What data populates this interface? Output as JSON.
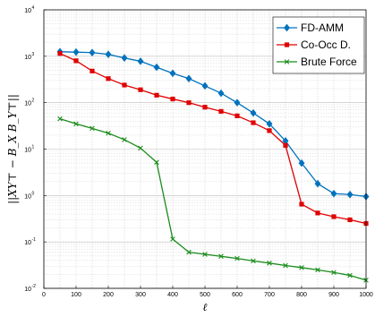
{
  "chart_data": {
    "type": "line",
    "title": "",
    "xlabel": "ℓ",
    "ylabel": "||XY⊤ − B_X B_Y⊤||",
    "x": [
      50,
      100,
      150,
      200,
      250,
      300,
      350,
      400,
      450,
      500,
      550,
      600,
      650,
      700,
      750,
      800,
      850,
      900,
      950,
      1000
    ],
    "xlim": [
      0,
      1000
    ],
    "ylim": [
      0.01,
      10000
    ],
    "yscale": "log",
    "grid": true,
    "legend_position": "top-right",
    "x_ticks": [
      "0",
      "100",
      "200",
      "300",
      "400",
      "500",
      "600",
      "700",
      "800",
      "900",
      "1000"
    ],
    "y_ticks": [
      {
        "base": "10",
        "exp": "-2"
      },
      {
        "base": "10",
        "exp": "-1"
      },
      {
        "base": "10",
        "exp": "0"
      },
      {
        "base": "10",
        "exp": "1"
      },
      {
        "base": "10",
        "exp": "2"
      },
      {
        "base": "10",
        "exp": "3"
      },
      {
        "base": "10",
        "exp": "4"
      }
    ],
    "series": [
      {
        "name": "FD-AMM",
        "color": "#0072BD",
        "marker": "diamond",
        "values": [
          1250,
          1230,
          1200,
          1100,
          920,
          780,
          580,
          430,
          330,
          230,
          160,
          100,
          60,
          35,
          15,
          5,
          1.8,
          1.1,
          1.05,
          0.95
        ]
      },
      {
        "name": "Co-Occ D.",
        "color": "#E00000",
        "marker": "square",
        "values": [
          1150,
          800,
          480,
          330,
          240,
          190,
          145,
          120,
          100,
          80,
          65,
          52,
          37,
          25,
          12,
          0.65,
          0.42,
          0.35,
          0.3,
          0.25
        ]
      },
      {
        "name": "Brute Force",
        "color": "#1A8C1A",
        "marker": "x",
        "values": [
          45,
          35,
          28,
          22,
          16,
          10.5,
          5.2,
          0.115,
          0.06,
          0.054,
          0.049,
          0.044,
          0.039,
          0.035,
          0.031,
          0.028,
          0.025,
          0.022,
          0.019,
          0.015
        ]
      }
    ]
  }
}
